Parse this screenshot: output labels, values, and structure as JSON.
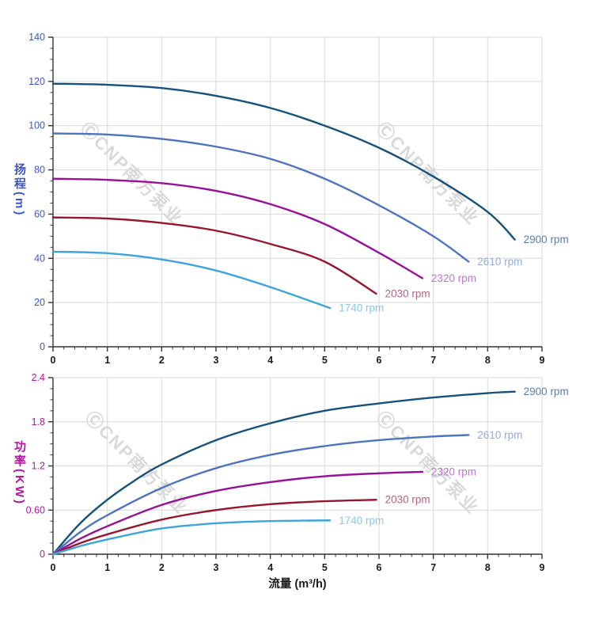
{
  "watermark": {
    "text": "ⒸCNP南方泵业"
  },
  "colors": {
    "grid": "#d9d9d9",
    "axis_line": "#333333",
    "tick": "#333333",
    "x_tick_label": "#1a1a1a",
    "head_axis_accent": "#3c55cf",
    "power_axis_accent": "#b5149e"
  },
  "chart_data": [
    {
      "type": "line",
      "title": "",
      "ylabel": "扬程(m)",
      "xlabel": "",
      "axis_color": "#3c55cf",
      "xlim": [
        0,
        9
      ],
      "ylim": [
        0,
        140
      ],
      "grid": true,
      "legend_position": "curve-end-labels",
      "x_ticks": [
        [
          0,
          "0"
        ],
        [
          1,
          "1"
        ],
        [
          2,
          "2"
        ],
        [
          3,
          "3"
        ],
        [
          4,
          "4"
        ],
        [
          5,
          "5"
        ],
        [
          6,
          "6"
        ],
        [
          7,
          "7"
        ],
        [
          8,
          "8"
        ],
        [
          9,
          "9"
        ]
      ],
      "y_ticks": [
        [
          0,
          "0"
        ],
        [
          20,
          "20"
        ],
        [
          40,
          "40"
        ],
        [
          60,
          "60"
        ],
        [
          80,
          "80"
        ],
        [
          100,
          "100"
        ],
        [
          120,
          "120"
        ],
        [
          140,
          "140"
        ]
      ],
      "x_minor_step": 0.2,
      "y_minor_step": 5,
      "series": [
        {
          "name": "2900 rpm",
          "color": "#15527e",
          "label_color": "#5d7ba8",
          "points": [
            [
              0,
              119
            ],
            [
              1,
              118.5
            ],
            [
              2,
              117
            ],
            [
              3,
              113.5
            ],
            [
              4,
              108
            ],
            [
              5,
              100
            ],
            [
              6,
              90
            ],
            [
              7,
              77
            ],
            [
              8,
              61
            ],
            [
              8.5,
              48.5
            ]
          ]
        },
        {
          "name": "2610 rpm",
          "color": "#4e74c0",
          "label_color": "#92abd8",
          "points": [
            [
              0,
              96.5
            ],
            [
              1,
              96
            ],
            [
              2,
              94
            ],
            [
              3,
              90.5
            ],
            [
              4,
              85
            ],
            [
              5,
              76
            ],
            [
              6,
              64
            ],
            [
              7,
              50
            ],
            [
              7.65,
              38.5
            ]
          ]
        },
        {
          "name": "2320 rpm",
          "color": "#991098",
          "label_color": "#bc76d0",
          "points": [
            [
              0,
              76
            ],
            [
              1,
              75.5
            ],
            [
              2,
              74
            ],
            [
              3,
              70.5
            ],
            [
              4,
              64.5
            ],
            [
              5,
              55.5
            ],
            [
              6,
              42.5
            ],
            [
              6.8,
              31
            ]
          ]
        },
        {
          "name": "2030 rpm",
          "color": "#96182f",
          "label_color": "#b26580",
          "points": [
            [
              0,
              58.5
            ],
            [
              1,
              58
            ],
            [
              2,
              56
            ],
            [
              3,
              52.5
            ],
            [
              4,
              46.5
            ],
            [
              5,
              38.5
            ],
            [
              5.95,
              24
            ]
          ]
        },
        {
          "name": "1740 rpm",
          "color": "#3da5da",
          "label_color": "#8cc5e8",
          "points": [
            [
              0,
              43
            ],
            [
              1,
              42.3
            ],
            [
              2,
              39.5
            ],
            [
              3,
              34.5
            ],
            [
              4,
              27
            ],
            [
              5.1,
              17.5
            ]
          ]
        }
      ]
    },
    {
      "type": "line",
      "title": "",
      "ylabel": "功率(KW)",
      "xlabel": "流量 (m³/h)",
      "axis_color": "#b5149e",
      "xlim": [
        0,
        9
      ],
      "ylim": [
        0,
        2.4
      ],
      "grid": true,
      "legend_position": "curve-end-labels",
      "x_ticks": [
        [
          0,
          "0"
        ],
        [
          1,
          "1"
        ],
        [
          2,
          "2"
        ],
        [
          3,
          "3"
        ],
        [
          4,
          "4"
        ],
        [
          5,
          "5"
        ],
        [
          6,
          "6"
        ],
        [
          7,
          "7"
        ],
        [
          8,
          "8"
        ],
        [
          9,
          "9"
        ]
      ],
      "y_ticks": [
        [
          0,
          "0"
        ],
        [
          0.6,
          "0.60"
        ],
        [
          1.2,
          "1.2"
        ],
        [
          1.8,
          "1.8"
        ],
        [
          2.4,
          "2.4"
        ]
      ],
      "x_minor_step": 0.2,
      "y_minor_step": 0.15,
      "series": [
        {
          "name": "2900 rpm",
          "color": "#15527e",
          "label_color": "#5d7ba8",
          "points": [
            [
              0,
              0
            ],
            [
              0.5,
              0.42
            ],
            [
              1,
              0.74
            ],
            [
              1.5,
              1.0
            ],
            [
              2,
              1.22
            ],
            [
              3,
              1.55
            ],
            [
              4,
              1.78
            ],
            [
              5,
              1.95
            ],
            [
              6,
              2.05
            ],
            [
              7,
              2.13
            ],
            [
              8,
              2.19
            ],
            [
              8.5,
              2.21
            ]
          ]
        },
        {
          "name": "2610 rpm",
          "color": "#4e74c0",
          "label_color": "#92abd8",
          "points": [
            [
              0,
              0
            ],
            [
              0.5,
              0.3
            ],
            [
              1,
              0.53
            ],
            [
              2,
              0.9
            ],
            [
              3,
              1.17
            ],
            [
              4,
              1.35
            ],
            [
              5,
              1.47
            ],
            [
              6,
              1.55
            ],
            [
              7,
              1.6
            ],
            [
              7.65,
              1.62
            ]
          ]
        },
        {
          "name": "2320 rpm",
          "color": "#991098",
          "label_color": "#bc76d0",
          "points": [
            [
              0,
              0
            ],
            [
              0.5,
              0.21
            ],
            [
              1,
              0.38
            ],
            [
              2,
              0.67
            ],
            [
              3,
              0.86
            ],
            [
              4,
              0.98
            ],
            [
              5,
              1.06
            ],
            [
              6,
              1.1
            ],
            [
              6.8,
              1.12
            ]
          ]
        },
        {
          "name": "2030 rpm",
          "color": "#96182f",
          "label_color": "#b26580",
          "points": [
            [
              0,
              0
            ],
            [
              0.5,
              0.15
            ],
            [
              1,
              0.27
            ],
            [
              2,
              0.47
            ],
            [
              3,
              0.6
            ],
            [
              4,
              0.68
            ],
            [
              5,
              0.72
            ],
            [
              5.95,
              0.74
            ]
          ]
        },
        {
          "name": "1740 rpm",
          "color": "#3da5da",
          "label_color": "#8cc5e8",
          "points": [
            [
              0,
              0
            ],
            [
              0.5,
              0.11
            ],
            [
              1,
              0.2
            ],
            [
              2,
              0.35
            ],
            [
              3,
              0.42
            ],
            [
              4,
              0.45
            ],
            [
              5.1,
              0.46
            ]
          ]
        }
      ]
    }
  ]
}
